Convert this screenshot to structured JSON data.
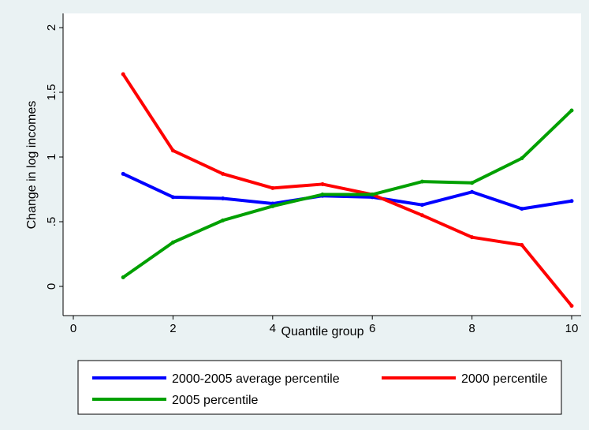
{
  "chart_data": {
    "type": "line",
    "xlabel": "Quantile group",
    "ylabel": "Change in log incomes",
    "xlim": [
      0,
      10
    ],
    "ylim": [
      -0.15,
      2.0
    ],
    "x_ticks": [
      0,
      2,
      4,
      6,
      8,
      10
    ],
    "x_tick_labels": [
      "0",
      "2",
      "4",
      "6",
      "8",
      "10"
    ],
    "y_ticks": [
      0,
      0.5,
      1,
      1.5,
      2
    ],
    "y_tick_labels": [
      "0",
      ".5",
      "1",
      "1.5",
      "2"
    ],
    "grid": false,
    "legend_position": "bottom",
    "x": [
      1,
      2,
      3,
      4,
      5,
      6,
      7,
      8,
      9,
      10
    ],
    "series": [
      {
        "name": "2000-2005 average percentile",
        "color": "#0000ff",
        "values": [
          0.87,
          0.69,
          0.68,
          0.64,
          0.7,
          0.69,
          0.63,
          0.73,
          0.6,
          0.66
        ]
      },
      {
        "name": "2000 percentile",
        "color": "#ff0000",
        "values": [
          1.64,
          1.05,
          0.87,
          0.76,
          0.79,
          0.71,
          0.55,
          0.38,
          0.32,
          -0.15
        ]
      },
      {
        "name": "2005 percentile",
        "color": "#00a000",
        "values": [
          0.07,
          0.34,
          0.51,
          0.62,
          0.71,
          0.71,
          0.81,
          0.8,
          0.99,
          1.36
        ]
      }
    ]
  }
}
